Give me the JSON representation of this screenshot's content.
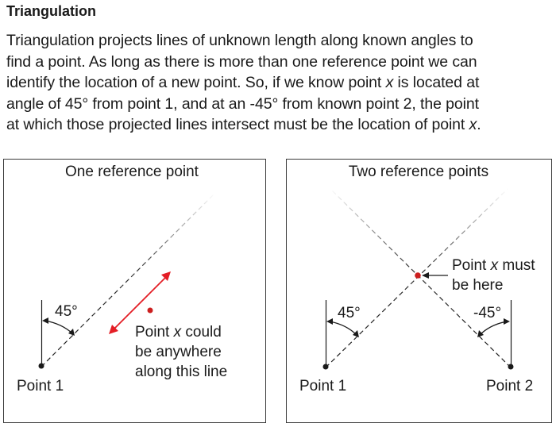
{
  "heading": "Triangulation",
  "paragraph": {
    "line1": "Triangulation projects lines of unknown length along known angles to",
    "line2": "find a point. As long as there is more than one reference point we can",
    "line3": "identify the location of a new point. So, if we know point ",
    "line3_var": "x",
    "line3_end": " is located at",
    "line4": "angle of 45° from point 1, and at an -45° from known point 2, the point",
    "line5": "at which those projected lines intersect must be the location of point ",
    "line5_var": "x",
    "line5_end": "."
  },
  "left_panel": {
    "title": "One reference point",
    "angle_label": "45°",
    "point_label": "Point 1",
    "note_line1_a": "Point ",
    "note_line1_var": "x",
    "note_line1_b": " could",
    "note_line2": "be anywhere",
    "note_line3": "along this line"
  },
  "right_panel": {
    "title": "Two reference points",
    "angle_left_label": "45°",
    "angle_right_label": "-45°",
    "point1_label": "Point 1",
    "point2_label": "Point 2",
    "note_line1_a": "Point ",
    "note_line1_var": "x",
    "note_line1_b": " must",
    "note_line2": "be here"
  },
  "colors": {
    "accent_red": "#e41e26",
    "dot_red": "#cc1f1f",
    "ink": "#1a1a1a",
    "frame": "#3a3a3a"
  }
}
